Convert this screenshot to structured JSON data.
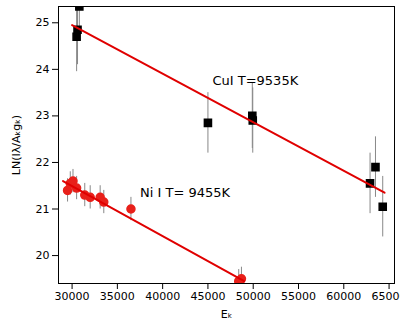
{
  "chart_data": {
    "type": "scatter",
    "xlabel": "Eₖ",
    "ylabel": "LN(Iλ/Aₖgₖ)",
    "xlim": [
      28500,
      65600
    ],
    "ylim": [
      19.4,
      25.35
    ],
    "xticks": [
      30000,
      35000,
      40000,
      45000,
      50000,
      55000,
      60000,
      65000
    ],
    "yticks": [
      20,
      21,
      22,
      23,
      24,
      25
    ],
    "grid": false,
    "series": [
      {
        "type": "scatter",
        "marker": "square",
        "color": "#000000",
        "x": [
          30500,
          30600,
          30800,
          45000,
          49900,
          49950,
          62900,
          63500,
          64300
        ],
        "values": [
          24.7,
          24.85,
          25.35,
          22.85,
          23.0,
          22.9,
          21.55,
          21.9,
          21.05
        ],
        "errors": [
          0.75,
          0.75,
          0.75,
          0.65,
          0.7,
          0.7,
          0.65,
          0.65,
          0.65
        ]
      },
      {
        "type": "scatter",
        "marker": "circle",
        "color": "#e8201a",
        "x": [
          29500,
          29800,
          30100,
          30500,
          31400,
          32000,
          33100,
          33500,
          36500,
          48400,
          48700
        ],
        "values": [
          21.4,
          21.55,
          21.6,
          21.45,
          21.3,
          21.25,
          21.25,
          21.15,
          21.0,
          19.45,
          19.5
        ],
        "errors": [
          0.25,
          0.25,
          0.25,
          0.25,
          0.25,
          0.25,
          0.25,
          0.25,
          0.25,
          0.25,
          0.25
        ]
      },
      {
        "type": "line",
        "color": "#e00000",
        "x": [
          30000,
          64500
        ],
        "values": [
          24.95,
          21.35
        ]
      },
      {
        "type": "line",
        "color": "#e00000",
        "x": [
          29000,
          49000
        ],
        "values": [
          21.6,
          19.45
        ]
      }
    ],
    "annotations": [
      {
        "text": "CuI T=9535K",
        "x": 45500,
        "y": 23.75
      },
      {
        "text": "Ni I T= 9455K",
        "x": 37500,
        "y": 21.35
      }
    ]
  }
}
